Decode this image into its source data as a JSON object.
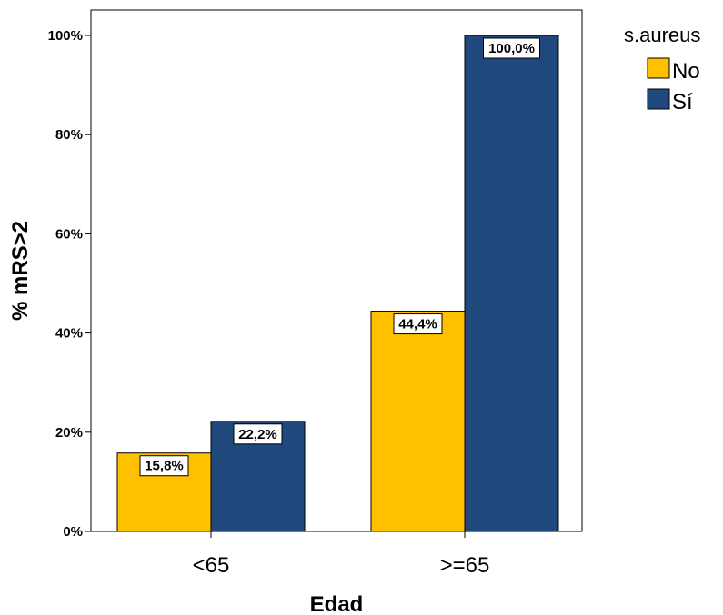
{
  "chart_data": {
    "type": "bar",
    "xlabel": "Edad",
    "ylabel": "% mRS>2",
    "categories": [
      "<65",
      ">=65"
    ],
    "ylim": [
      0,
      100
    ],
    "yticks": [
      0,
      20,
      40,
      60,
      80,
      100
    ],
    "ytick_labels": [
      "0%",
      "20%",
      "40%",
      "60%",
      "80%",
      "100%"
    ],
    "legend_title": "s.aureus",
    "legend_position": "top-right-outside",
    "grid": false,
    "series": [
      {
        "name": "No",
        "color": "#FFC000",
        "values": [
          15.8,
          44.4
        ],
        "labels": [
          "15,8%",
          "44,4%"
        ]
      },
      {
        "name": "Sí",
        "color": "#1F497D",
        "values": [
          22.2,
          100.0
        ],
        "labels": [
          "22,2%",
          "100,0%"
        ]
      }
    ]
  }
}
